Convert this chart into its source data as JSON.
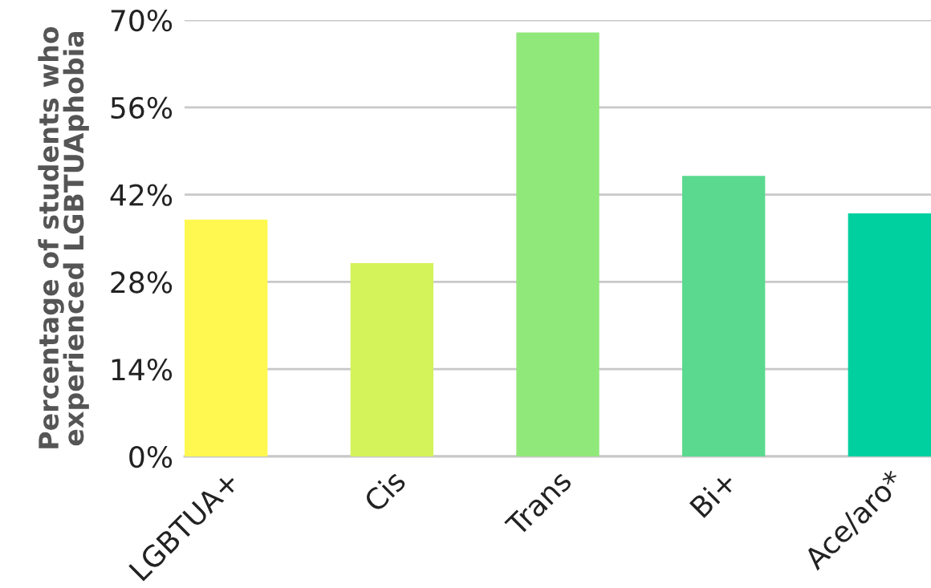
{
  "chart_data": {
    "type": "bar",
    "ylabel": "Percentage of students who\nexperienced LGBTUAphobia",
    "categories": [
      "LGBTUA+",
      "Cis",
      "Trans",
      "Bi+",
      "Ace/aro*"
    ],
    "values": [
      38,
      31,
      68,
      45,
      39
    ],
    "colors": [
      "#fef851",
      "#d4f25a",
      "#90e87a",
      "#5ad98f",
      "#00cfa0"
    ],
    "ylim": [
      0,
      70
    ],
    "yticks": [
      {
        "value": 0,
        "label": "0%"
      },
      {
        "value": 14,
        "label": "14%"
      },
      {
        "value": 28,
        "label": "28%"
      },
      {
        "value": 42,
        "label": "42%"
      },
      {
        "value": 56,
        "label": "56%"
      },
      {
        "value": 70,
        "label": "70%"
      }
    ],
    "grid": "y",
    "legend": false
  }
}
